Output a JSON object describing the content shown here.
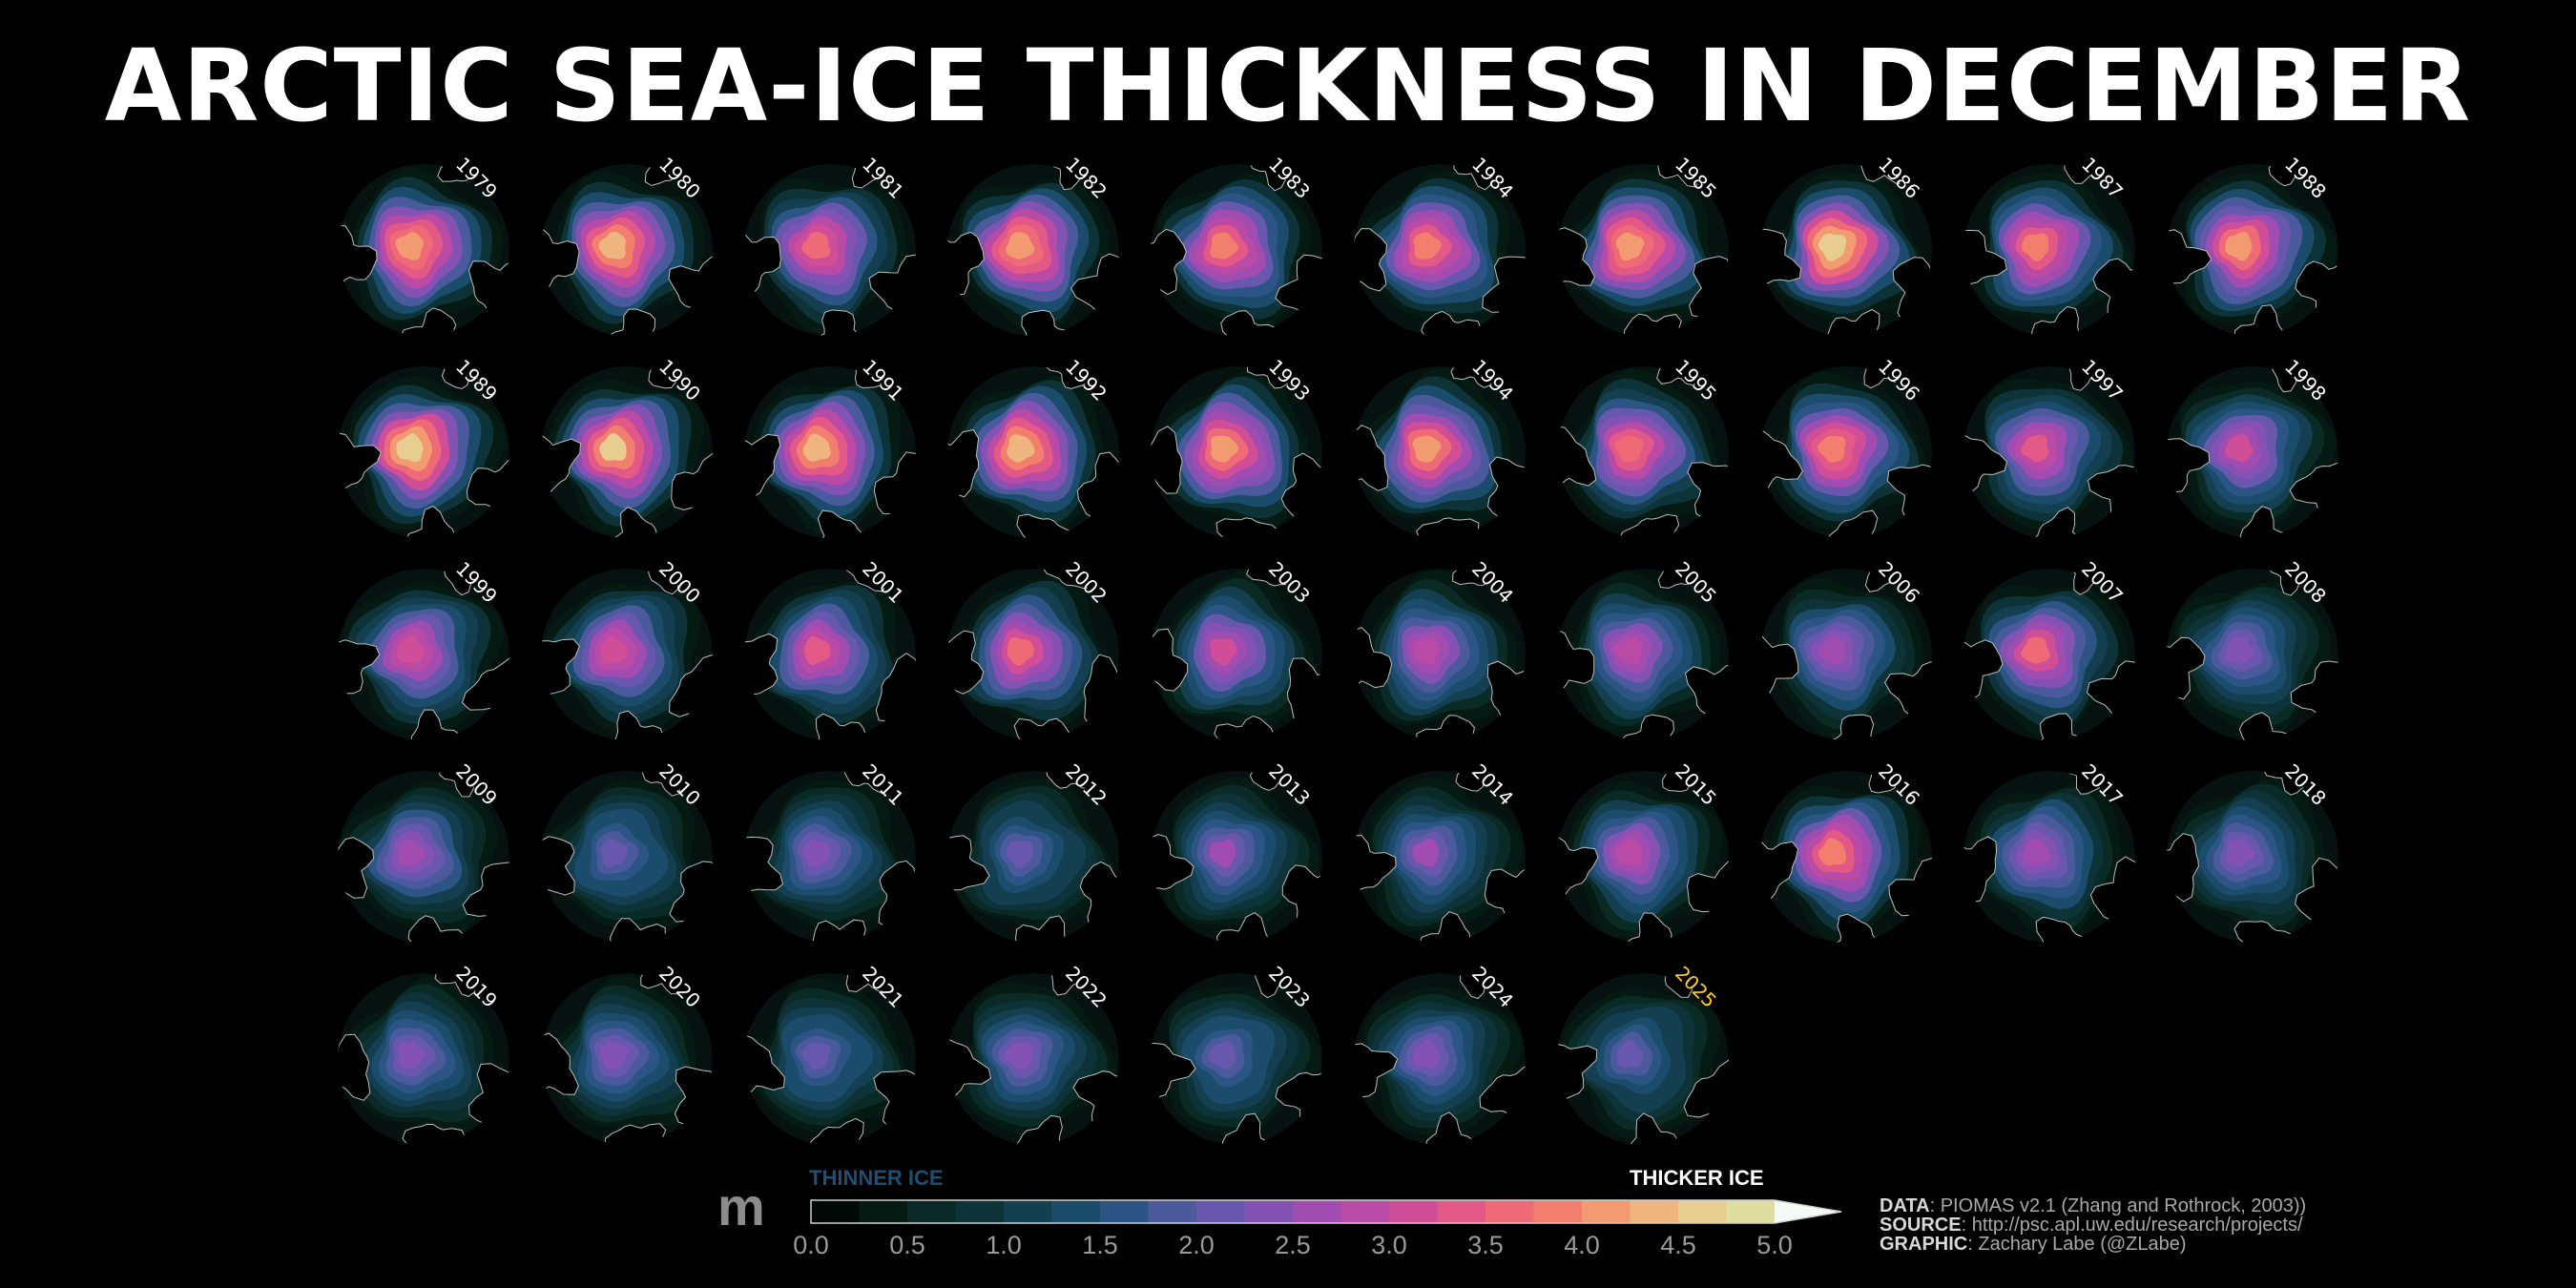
{
  "title": "ARCTIC SEA-ICE THICKNESS IN DECEMBER",
  "colors": {
    "background": "#000000",
    "year_label": "#ffffff",
    "current_year_label": "#ffd21f",
    "thinner_label": "#1d4f74",
    "thicker_label": "#ffffff"
  },
  "chart_data": {
    "type": "heatmap",
    "description": "Small-multiple polar maps of monthly mean Arctic sea-ice thickness for December, one panel per year",
    "variable": "sea-ice thickness",
    "month": "December",
    "units": "m",
    "years": [
      "1979",
      "1980",
      "1981",
      "1982",
      "1983",
      "1984",
      "1985",
      "1986",
      "1987",
      "1988",
      "1989",
      "1990",
      "1991",
      "1992",
      "1993",
      "1994",
      "1995",
      "1996",
      "1997",
      "1998",
      "1999",
      "2000",
      "2001",
      "2002",
      "2003",
      "2004",
      "2005",
      "2006",
      "2007",
      "2008",
      "2009",
      "2010",
      "2011",
      "2012",
      "2013",
      "2014",
      "2015",
      "2016",
      "2017",
      "2018",
      "2019",
      "2020",
      "2021",
      "2022",
      "2023",
      "2024",
      "2025"
    ],
    "highlight_year": "2025",
    "approx_central_max_thickness_m": [
      4.2,
      4.3,
      3.6,
      4.2,
      3.8,
      3.8,
      4.2,
      4.6,
      3.8,
      4.0,
      4.6,
      4.5,
      4.4,
      4.3,
      4.1,
      4.0,
      3.7,
      3.9,
      3.3,
      3.0,
      3.2,
      3.2,
      3.3,
      3.5,
      3.0,
      2.9,
      2.9,
      2.7,
      3.5,
      2.4,
      2.6,
      2.1,
      2.4,
      2.0,
      2.5,
      2.5,
      2.9,
      3.8,
      2.7,
      2.3,
      2.3,
      2.3,
      2.1,
      2.3,
      2.1,
      2.3,
      2.0
    ],
    "colorbar": {
      "range": [
        0.0,
        5.0
      ],
      "step": 0.25,
      "ticks": [
        "0.0",
        "0.5",
        "1.0",
        "1.5",
        "2.0",
        "2.5",
        "3.0",
        "3.5",
        "4.0",
        "4.5",
        "5.0"
      ],
      "extend": "max",
      "colors": [
        "#030906",
        "#061a14",
        "#0a2a26",
        "#0d3338",
        "#133f51",
        "#1b4c6b",
        "#2c5585",
        "#4a5a9c",
        "#6757ad",
        "#8452b3",
        "#a04cb1",
        "#b94aa6",
        "#d04e97",
        "#e25886",
        "#ee6a77",
        "#f27f6d",
        "#f29a70",
        "#efb57e",
        "#e8cd91",
        "#ddde9f",
        "#cbe8b4",
        "#dff2da",
        "#f3fbf7"
      ],
      "unit_label": "m",
      "low_label": "THINNER ICE",
      "high_label": "THICKER ICE"
    }
  },
  "credits": {
    "data_key": "DATA",
    "data_value": ": PIOMAS v2.1 (Zhang and Rothrock, 2003))",
    "source_key": "SOURCE",
    "source_value": ": http://psc.apl.uw.edu/research/projects/",
    "graphic_key": "GRAPHIC",
    "graphic_value": ": Zachary Labe (@ZLabe)"
  }
}
